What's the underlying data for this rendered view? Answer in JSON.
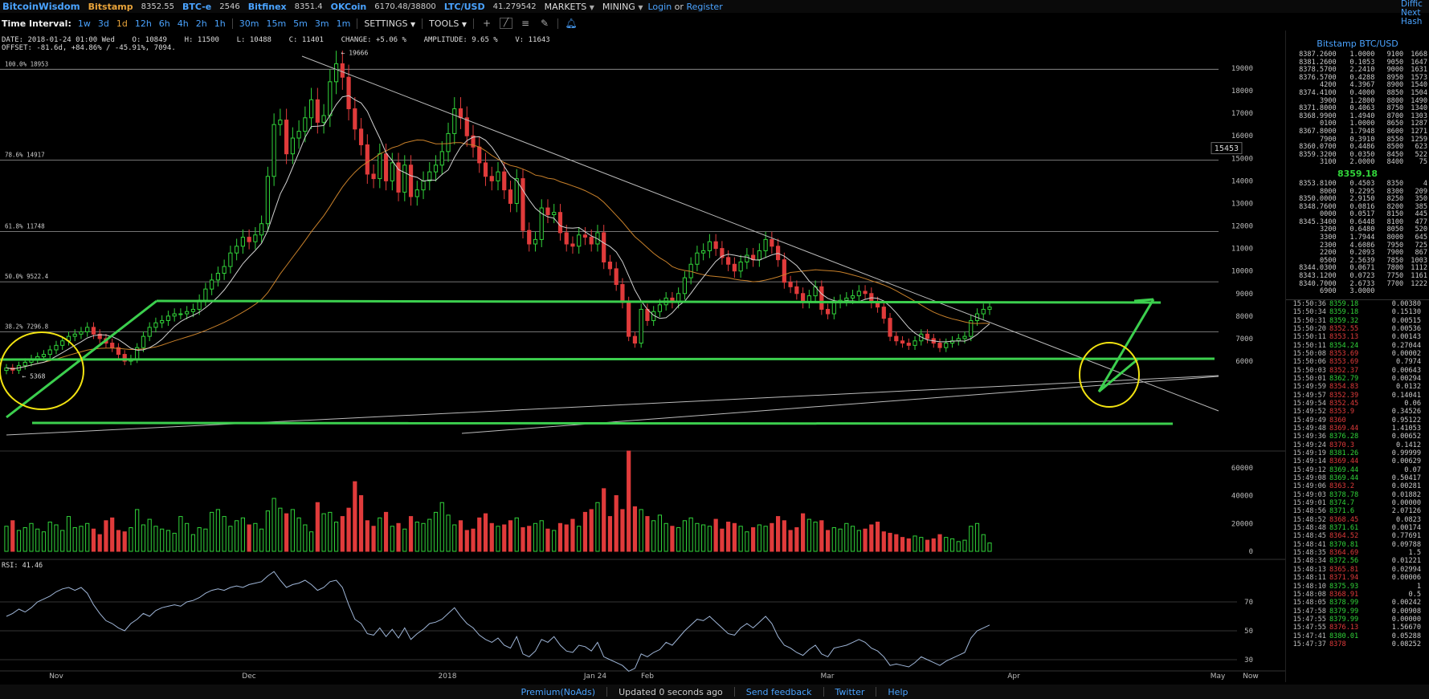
{
  "app": {
    "logo": "BitcoinWisdom",
    "login": "Login",
    "or": "or",
    "register": "Register",
    "corner": [
      "Diffic",
      "Next",
      "Hash"
    ]
  },
  "exchanges": [
    {
      "name": "Bitstamp",
      "price": "8352.55",
      "active": true
    },
    {
      "name": "BTC-e",
      "price": "2546",
      "active": false
    },
    {
      "name": "Bitfinex",
      "price": "8351.4",
      "active": false
    },
    {
      "name": "OKCoin",
      "price": "6170.48/38800",
      "active": false
    },
    {
      "name": "LTC/USD",
      "price": "41.279542",
      "active": false
    }
  ],
  "menus": {
    "markets": "MARKETS",
    "mining": "MINING"
  },
  "toolbar": {
    "label": "Time Interval:",
    "intervals_a": [
      "1w",
      "3d",
      "1d",
      "12h",
      "6h",
      "4h",
      "2h",
      "1h"
    ],
    "intervals_b": [
      "30m",
      "15m",
      "5m",
      "3m",
      "1m"
    ],
    "selected": "1d",
    "settings": "SETTINGS",
    "tools": "TOOLS"
  },
  "info": {
    "line1": "DATE: 2018-01-24 01:00 Wed    O: 10849    H: 11500    L: 10488    C: 11401    CHANGE: +5.06 %    AMPLITUDE: 9.65 %    V: 11643",
    "line2": "OFFSET: -81.6d, +84.86% / -45.91%, 7094."
  },
  "colors": {
    "accent": "#4aa3ff",
    "up": "#31d33a",
    "down": "#e03b3b",
    "ma_short": "#d0d0d0",
    "ma_long": "#c8802a",
    "annotation_green": "#3ccf4e",
    "annotation_yellow": "#f2e311"
  },
  "chart_data": {
    "type": "candlestick",
    "price_axis": {
      "ticks": [
        6000,
        7000,
        8000,
        9000,
        10000,
        11000,
        12000,
        13000,
        14000,
        15000,
        16000,
        17000,
        18000,
        19000
      ],
      "ylim": [
        5300,
        19700
      ],
      "crosshair_value": "15453"
    },
    "x_ticks": [
      "Nov",
      "Dec",
      "2018",
      "Jan 24",
      "Feb",
      "Mar",
      "Apr",
      "May",
      "Now"
    ],
    "fib_levels": [
      {
        "label": "100.0% 18953",
        "value": 18953
      },
      {
        "label": "78.6% 14917",
        "value": 14917
      },
      {
        "label": "61.8% 11748",
        "value": 11748
      },
      {
        "label": "50.0% 9522.4",
        "value": 9522.4
      },
      {
        "label": "38.2% 7296.8",
        "value": 7296.8
      }
    ],
    "annotations": {
      "high": "← 19666",
      "low": "← 5368"
    },
    "closes": [
      5700,
      5600,
      5800,
      5950,
      6100,
      6200,
      6300,
      6500,
      6700,
      6900,
      7100,
      7200,
      7300,
      7500,
      7200,
      7000,
      6800,
      6600,
      6300,
      6000,
      6100,
      6600,
      7100,
      7500,
      7700,
      7800,
      8000,
      8100,
      8100,
      8200,
      8300,
      8700,
      9200,
      9600,
      9900,
      10200,
      10800,
      11100,
      11500,
      11300,
      11600,
      12100,
      14200,
      16500,
      16700,
      15200,
      15900,
      16200,
      16800,
      17600,
      16600,
      16900,
      18400,
      19200,
      18600,
      17200,
      16300,
      15600,
      14300,
      14100,
      15200,
      14000,
      14800,
      13500,
      14700,
      13300,
      13600,
      14000,
      14400,
      14700,
      15300,
      16100,
      17200,
      16800,
      16000,
      15500,
      14800,
      14200,
      14000,
      14400,
      13600,
      13000,
      14100,
      11800,
      11200,
      11400,
      12800,
      12500,
      12600,
      11700,
      11200,
      11100,
      11600,
      11500,
      11200,
      11700,
      10400,
      10100,
      9400,
      8600,
      7100,
      6800,
      8300,
      7800,
      8200,
      8500,
      8800,
      8600,
      9000,
      9700,
      10300,
      10800,
      10900,
      11300,
      11000,
      10600,
      10300,
      10000,
      10400,
      10700,
      10500,
      10900,
      11400,
      11100,
      10500,
      9500,
      9300,
      9000,
      8600,
      8900,
      9300,
      8300,
      8100,
      8600,
      8700,
      8800,
      8900,
      9100,
      9000,
      8600,
      8400,
      7900,
      7100,
      6900,
      6800,
      6700,
      6900,
      7200,
      7000,
      6800,
      6600,
      6800,
      6900,
      7000,
      7100,
      7800,
      8100,
      8300,
      8400
    ],
    "volume": {
      "ticks": [
        0,
        20000,
        40000,
        60000
      ],
      "values": [
        18000,
        22000,
        15000,
        17000,
        20000,
        16000,
        14000,
        21000,
        19000,
        15000,
        25000,
        17000,
        18000,
        20000,
        16000,
        12000,
        22000,
        24000,
        15000,
        14000,
        17000,
        30000,
        19000,
        23000,
        18000,
        16000,
        15000,
        13000,
        25000,
        20000,
        12000,
        17000,
        16000,
        28000,
        30000,
        25000,
        18000,
        22000,
        24000,
        19000,
        20000,
        16000,
        29000,
        38000,
        31000,
        27000,
        30000,
        24000,
        19000,
        14000,
        35000,
        27000,
        28000,
        21000,
        25000,
        31000,
        50000,
        40000,
        22000,
        18000,
        24000,
        28000,
        18000,
        20000,
        16000,
        25000,
        21000,
        20000,
        23000,
        28000,
        35000,
        26000,
        19000,
        22000,
        15000,
        16000,
        24000,
        27000,
        20000,
        18000,
        19000,
        22000,
        24000,
        17000,
        18000,
        20000,
        22000,
        16000,
        15000,
        20000,
        19000,
        23000,
        18000,
        28000,
        30000,
        35000,
        45000,
        25000,
        40000,
        30000,
        72000,
        32000,
        30000,
        25000,
        22000,
        26000,
        20000,
        18000,
        17000,
        22000,
        24000,
        20000,
        19000,
        18000,
        23000,
        16000,
        21000,
        20000,
        18000,
        14000,
        17000,
        19000,
        18000,
        20000,
        25000,
        22000,
        15000,
        17000,
        27000,
        23000,
        21000,
        22000,
        15000,
        17000,
        16000,
        20000,
        18000,
        15000,
        16000,
        19000,
        21000,
        14000,
        13000,
        12000,
        10000,
        9000,
        11000,
        10000,
        8000,
        9000,
        12000,
        10000,
        9000,
        7000,
        8000,
        18000,
        20000,
        12000,
        6000
      ]
    },
    "rsi": {
      "label": "RSI: 41.46",
      "ticks": [
        30,
        50,
        70
      ],
      "values": [
        60,
        62,
        65,
        63,
        66,
        70,
        72,
        74,
        77,
        79,
        80,
        78,
        80,
        76,
        68,
        62,
        57,
        55,
        52,
        50,
        55,
        58,
        62,
        60,
        64,
        66,
        67,
        68,
        67,
        70,
        71,
        73,
        76,
        78,
        79,
        78,
        80,
        81,
        80,
        82,
        83,
        84,
        88,
        91,
        85,
        80,
        82,
        83,
        85,
        82,
        78,
        80,
        84,
        85,
        80,
        68,
        58,
        55,
        48,
        47,
        52,
        46,
        51,
        45,
        52,
        44,
        48,
        51,
        55,
        56,
        58,
        62,
        66,
        60,
        55,
        52,
        47,
        44,
        42,
        45,
        40,
        38,
        46,
        34,
        32,
        36,
        44,
        42,
        46,
        40,
        36,
        35,
        40,
        39,
        36,
        42,
        32,
        30,
        28,
        26,
        22,
        24,
        34,
        32,
        35,
        37,
        42,
        40,
        45,
        50,
        54,
        58,
        57,
        60,
        56,
        52,
        48,
        47,
        52,
        55,
        52,
        56,
        60,
        55,
        46,
        40,
        38,
        35,
        33,
        37,
        40,
        34,
        32,
        38,
        39,
        40,
        42,
        44,
        42,
        38,
        36,
        32,
        26,
        27,
        26,
        25,
        28,
        32,
        30,
        28,
        26,
        29,
        31,
        33,
        35,
        45,
        50,
        52,
        54
      ]
    }
  },
  "orderbook": {
    "title": "Bitstamp BTC/USD",
    "asks": [
      [
        "8387.2600",
        "1.0000",
        "9100",
        "1668"
      ],
      [
        "8381.2600",
        "0.1053",
        "9050",
        "1647"
      ],
      [
        "8378.5700",
        "2.2410",
        "9000",
        "1631"
      ],
      [
        "8376.5700",
        "0.4288",
        "8950",
        "1573"
      ],
      [
        "4200",
        "4.3967",
        "8900",
        "1540"
      ],
      [
        "8374.4100",
        "0.4000",
        "8850",
        "1504"
      ],
      [
        "3900",
        "1.2800",
        "8800",
        "1490"
      ],
      [
        "8371.8000",
        "0.4063",
        "8750",
        "1340"
      ],
      [
        "8368.9900",
        "1.4940",
        "8700",
        "1303"
      ],
      [
        "0100",
        "1.0000",
        "8650",
        "1287"
      ],
      [
        "8367.8000",
        "1.7948",
        "8600",
        "1271"
      ],
      [
        "7900",
        "0.3910",
        "8550",
        "1259"
      ],
      [
        "8360.0700",
        "0.4486",
        "8500",
        "623"
      ],
      [
        "8359.3200",
        "0.0350",
        "8450",
        "522"
      ],
      [
        "3100",
        "2.0000",
        "8400",
        "75"
      ]
    ],
    "last": "8359.18",
    "bids": [
      [
        "8353.8100",
        "0.4503",
        "8350",
        "4"
      ],
      [
        "8000",
        "0.2295",
        "8300",
        "209"
      ],
      [
        "8350.0000",
        "2.9150",
        "8250",
        "350"
      ],
      [
        "8348.7600",
        "0.0816",
        "8200",
        "385"
      ],
      [
        "0000",
        "0.0517",
        "8150",
        "445"
      ],
      [
        "8345.3400",
        "0.6448",
        "8100",
        "477"
      ],
      [
        "3200",
        "0.6480",
        "8050",
        "520"
      ],
      [
        "3300",
        "1.7944",
        "8000",
        "645"
      ],
      [
        "2300",
        "4.6086",
        "7950",
        "725"
      ],
      [
        "2200",
        "0.2093",
        "7900",
        "867"
      ],
      [
        "0500",
        "2.5639",
        "7850",
        "1003"
      ],
      [
        "8344.0300",
        "0.0671",
        "7800",
        "1112"
      ],
      [
        "8343.1200",
        "0.0723",
        "7750",
        "1161"
      ],
      [
        "8340.7000",
        "2.6733",
        "7700",
        "1222"
      ],
      [
        "6900",
        "3.0000",
        "",
        ""
      ]
    ]
  },
  "trades": [
    [
      "15:50:36",
      "8359.18",
      "0.00380",
      "up"
    ],
    [
      "15:50:34",
      "8359.18",
      "0.15130",
      "up"
    ],
    [
      "15:50:31",
      "8359.32",
      "0.00515",
      "up"
    ],
    [
      "15:50:20",
      "8352.55",
      "0.00536",
      "dn"
    ],
    [
      "15:50:11",
      "8353.13",
      "0.00143",
      "dn"
    ],
    [
      "15:50:11",
      "8354.24",
      "0.27044",
      "up"
    ],
    [
      "15:50:08",
      "8353.69",
      "0.00002",
      "dn"
    ],
    [
      "15:50:06",
      "8353.69",
      "0.7974",
      "dn"
    ],
    [
      "15:50:03",
      "8352.37",
      "0.00643",
      "dn"
    ],
    [
      "15:50:01",
      "8362.79",
      "0.00294",
      "up"
    ],
    [
      "15:49:59",
      "8354.83",
      "0.0132",
      "dn"
    ],
    [
      "15:49:57",
      "8352.39",
      "0.14041",
      "dn"
    ],
    [
      "15:49:54",
      "8352.45",
      "0.06",
      "dn"
    ],
    [
      "15:49:52",
      "8353.9",
      "0.34526",
      "dn"
    ],
    [
      "15:49:49",
      "8360",
      "0.95122",
      "dn"
    ],
    [
      "15:49:48",
      "8369.44",
      "1.41053",
      "dn"
    ],
    [
      "15:49:36",
      "8376.28",
      "0.00652",
      "up"
    ],
    [
      "15:49:24",
      "8370.3",
      "0.1412",
      "dn"
    ],
    [
      "15:49:19",
      "8381.26",
      "0.99999",
      "up"
    ],
    [
      "15:49:14",
      "8369.44",
      "0.00629",
      "dn"
    ],
    [
      "15:49:12",
      "8369.44",
      "0.07",
      "up"
    ],
    [
      "15:49:08",
      "8369.44",
      "0.50417",
      "up"
    ],
    [
      "15:49:06",
      "8363.2",
      "0.00281",
      "dn"
    ],
    [
      "15:49:03",
      "8378.78",
      "0.01882",
      "up"
    ],
    [
      "15:49:01",
      "8374.7",
      "0.00000",
      "up"
    ],
    [
      "15:48:56",
      "8371.6",
      "2.07126",
      "up"
    ],
    [
      "15:48:52",
      "8368.45",
      "0.0823",
      "dn"
    ],
    [
      "15:48:48",
      "8371.61",
      "0.00174",
      "up"
    ],
    [
      "15:48:45",
      "8364.52",
      "0.77691",
      "dn"
    ],
    [
      "15:48:41",
      "8370.81",
      "0.09788",
      "up"
    ],
    [
      "15:48:35",
      "8364.69",
      "1.5",
      "dn"
    ],
    [
      "15:48:34",
      "8372.56",
      "0.01221",
      "up"
    ],
    [
      "15:48:13",
      "8365.81",
      "0.02994",
      "dn"
    ],
    [
      "15:48:11",
      "8371.94",
      "0.00006",
      "dn"
    ],
    [
      "15:48:10",
      "8375.93",
      "1",
      "up"
    ],
    [
      "15:48:08",
      "8368.91",
      "0.5",
      "dn"
    ],
    [
      "15:48:05",
      "8378.99",
      "0.00242",
      "up"
    ],
    [
      "15:47:58",
      "8379.99",
      "0.00908",
      "up"
    ],
    [
      "15:47:55",
      "8379.99",
      "0.00000",
      "up"
    ],
    [
      "15:47:55",
      "8376.13",
      "1.56670",
      "dn"
    ],
    [
      "15:47:41",
      "8380.01",
      "0.05288",
      "up"
    ],
    [
      "15:47:37",
      "8378",
      "0.08252",
      "dn"
    ]
  ],
  "footer": {
    "premium": "Premium(NoAds)",
    "updated": "Updated 0 seconds ago",
    "feedback": "Send feedback",
    "twitter": "Twitter",
    "help": "Help"
  }
}
